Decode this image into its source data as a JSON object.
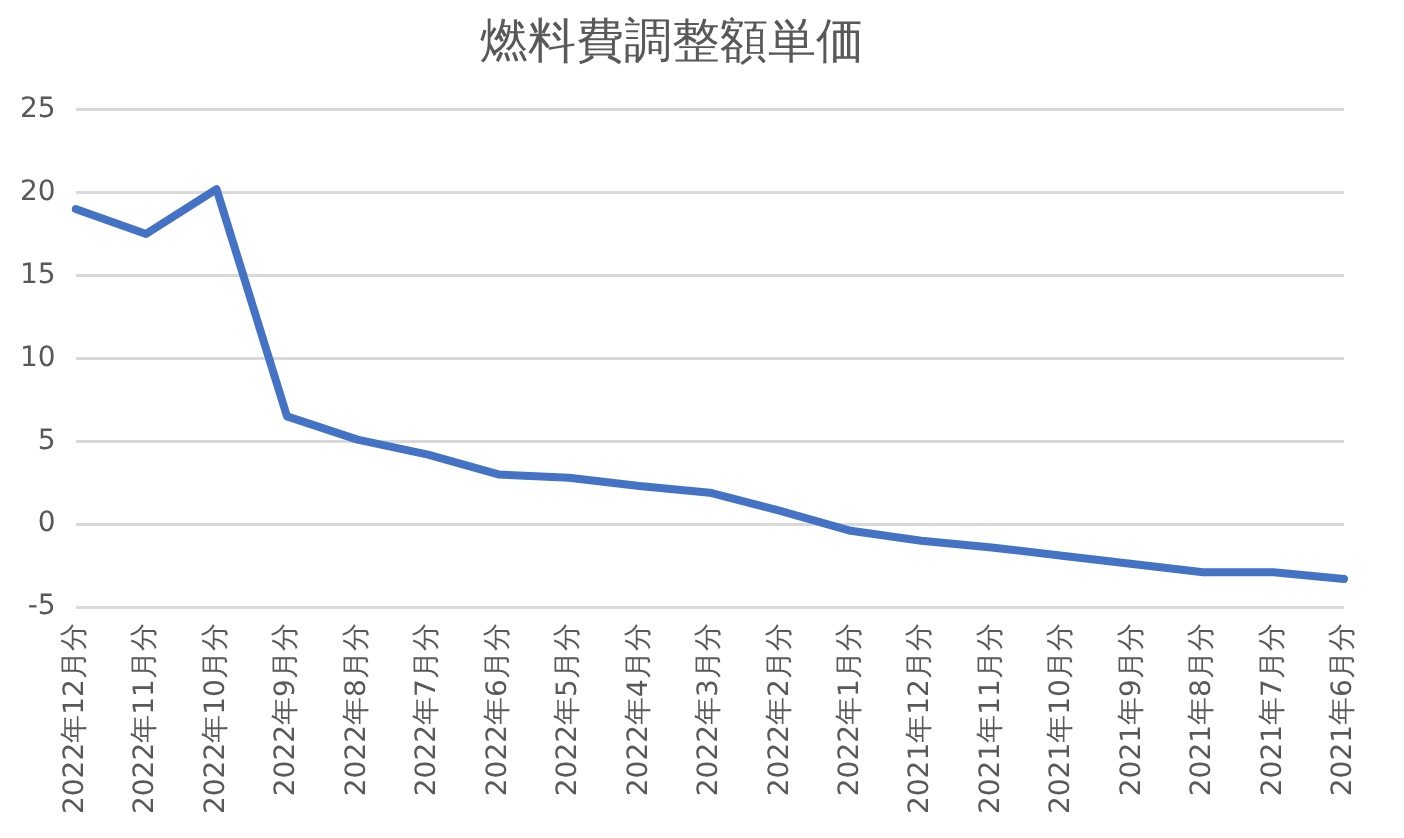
{
  "chart_data": {
    "type": "line",
    "title": "燃料費調整額単価",
    "categories": [
      "2022年12月分",
      "2022年11月分",
      "2022年10月分",
      "2022年9月分",
      "2022年8月分",
      "2022年7月分",
      "2022年6月分",
      "2022年5月分",
      "2022年4月分",
      "2022年3月分",
      "2022年2月分",
      "2022年1月分",
      "2021年12月分",
      "2021年11月分",
      "2021年10月分",
      "2021年9月分",
      "2021年8月分",
      "2021年7月分",
      "2021年6月分"
    ],
    "series": [
      {
        "color": "#4472c4",
        "values": [
          19.0,
          17.5,
          20.2,
          6.5,
          5.1,
          4.2,
          3.0,
          2.8,
          2.3,
          1.9,
          0.8,
          -0.4,
          -1.0,
          -1.4,
          -1.9,
          -2.4,
          -2.9,
          -2.9,
          -3.3
        ]
      }
    ],
    "ylim": [
      -5,
      25
    ],
    "yticks": [
      -5,
      0,
      5,
      10,
      15,
      20,
      25
    ],
    "grid": "y",
    "legend": false,
    "marker": "none",
    "line_style": "solid"
  }
}
